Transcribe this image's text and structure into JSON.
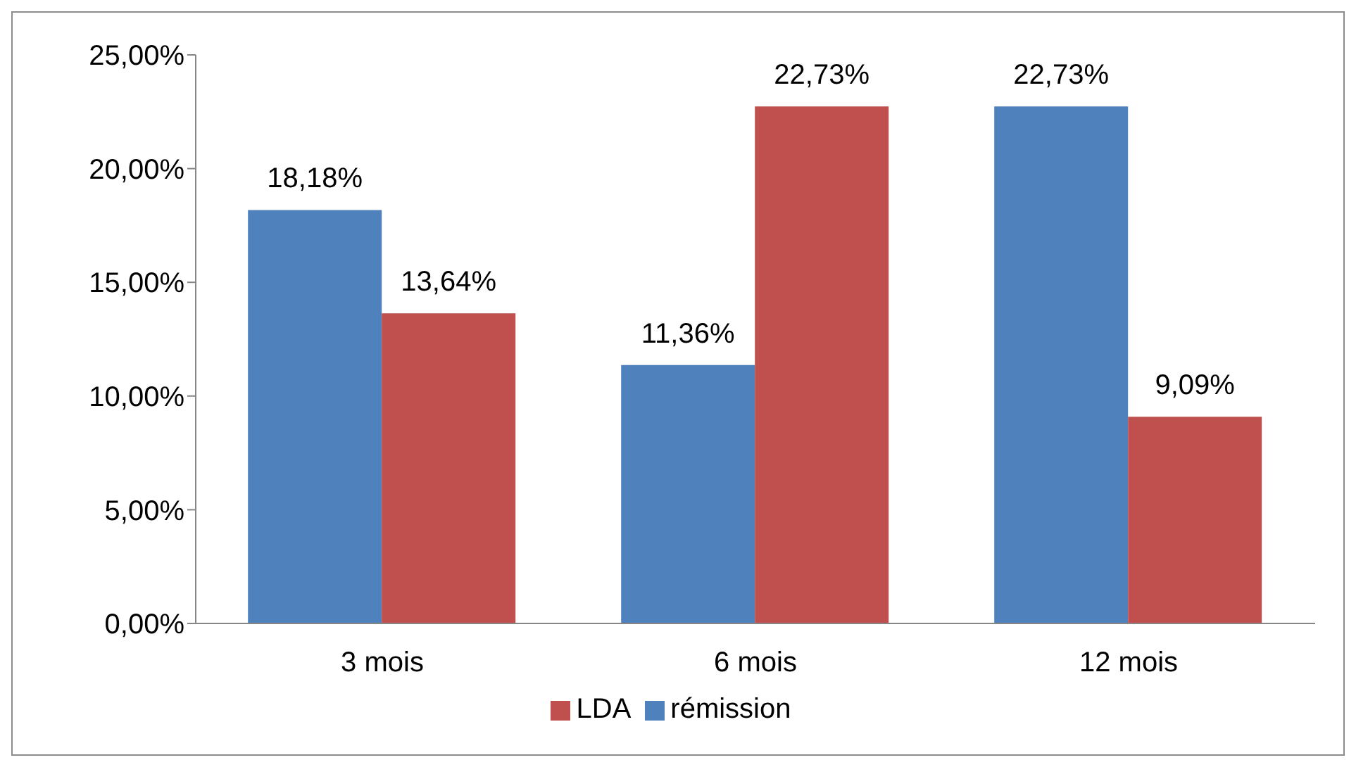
{
  "chart_data": {
    "type": "bar",
    "categories": [
      "3 mois",
      "6 mois",
      "12 mois"
    ],
    "series": [
      {
        "name": "rémission",
        "color": "#4f81bd",
        "values": [
          18.18,
          11.36,
          22.73
        ],
        "value_labels": [
          "18,18%",
          "11,36%",
          "22,73%"
        ]
      },
      {
        "name": "LDA",
        "color": "#c0504d",
        "values": [
          13.64,
          22.73,
          9.09
        ],
        "value_labels": [
          "13,64%",
          "22,73%",
          "9,09%"
        ]
      }
    ],
    "ylim": [
      0,
      25
    ],
    "yticks": [
      {
        "value": 0,
        "label": "0,00%"
      },
      {
        "value": 5,
        "label": "5,00%"
      },
      {
        "value": 10,
        "label": "10,00%"
      },
      {
        "value": 15,
        "label": "15,00%"
      },
      {
        "value": 20,
        "label": "20,00%"
      },
      {
        "value": 25,
        "label": "25,00%"
      }
    ],
    "grid": false,
    "legend": "bottom"
  }
}
